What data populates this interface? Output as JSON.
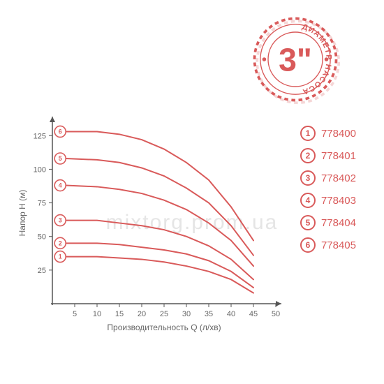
{
  "badge": {
    "diameter_value": "3\"",
    "ring_text": "ДИАМЕТР НАСОСА",
    "color": "#d95a5a",
    "outer_dash_color": "#d95a5a",
    "shadow_color": "rgba(217,90,90,0.25)"
  },
  "legend": {
    "color": "#d95a5a",
    "items": [
      {
        "n": "1",
        "label": "778400"
      },
      {
        "n": "2",
        "label": "778401"
      },
      {
        "n": "3",
        "label": "778402"
      },
      {
        "n": "4",
        "label": "778403"
      },
      {
        "n": "5",
        "label": "778404"
      },
      {
        "n": "6",
        "label": "778405"
      }
    ]
  },
  "watermark": "mixtorg.prom.ua",
  "chart": {
    "type": "line",
    "xlabel": "Производительность Q (л/хв)",
    "ylabel": "Напор H (м)",
    "label_fontsize": 12,
    "axis_color": "#555555",
    "tick_fontsize": 11,
    "tick_color": "#666666",
    "line_color": "#d95a5a",
    "line_width": 2,
    "marker_size": 8,
    "marker_fontsize": 7,
    "xlim": [
      0,
      50
    ],
    "ylim": [
      0,
      135
    ],
    "x_ticks": [
      5,
      10,
      15,
      20,
      25,
      30,
      35,
      40,
      45,
      50
    ],
    "y_ticks": [
      25,
      50,
      75,
      100,
      125
    ],
    "arrow_color": "#555555",
    "series": [
      {
        "n": "1",
        "points": [
          [
            3,
            35
          ],
          [
            10,
            35
          ],
          [
            15,
            34
          ],
          [
            20,
            33
          ],
          [
            25,
            31
          ],
          [
            30,
            28
          ],
          [
            35,
            24
          ],
          [
            40,
            18
          ],
          [
            45,
            8
          ]
        ]
      },
      {
        "n": "2",
        "points": [
          [
            3,
            45
          ],
          [
            10,
            45
          ],
          [
            15,
            44
          ],
          [
            20,
            42
          ],
          [
            25,
            40
          ],
          [
            30,
            37
          ],
          [
            35,
            32
          ],
          [
            40,
            24
          ],
          [
            45,
            12
          ]
        ]
      },
      {
        "n": "3",
        "points": [
          [
            3,
            62
          ],
          [
            10,
            62
          ],
          [
            15,
            60
          ],
          [
            20,
            58
          ],
          [
            25,
            55
          ],
          [
            30,
            50
          ],
          [
            35,
            43
          ],
          [
            40,
            33
          ],
          [
            45,
            18
          ]
        ]
      },
      {
        "n": "4",
        "points": [
          [
            3,
            88
          ],
          [
            10,
            87
          ],
          [
            15,
            85
          ],
          [
            20,
            82
          ],
          [
            25,
            77
          ],
          [
            30,
            70
          ],
          [
            35,
            60
          ],
          [
            40,
            47
          ],
          [
            45,
            28
          ]
        ]
      },
      {
        "n": "5",
        "points": [
          [
            3,
            108
          ],
          [
            10,
            107
          ],
          [
            15,
            105
          ],
          [
            20,
            101
          ],
          [
            25,
            95
          ],
          [
            30,
            86
          ],
          [
            35,
            75
          ],
          [
            40,
            58
          ],
          [
            45,
            36
          ]
        ]
      },
      {
        "n": "6",
        "points": [
          [
            3,
            128
          ],
          [
            10,
            128
          ],
          [
            15,
            126
          ],
          [
            20,
            122
          ],
          [
            25,
            115
          ],
          [
            30,
            105
          ],
          [
            35,
            92
          ],
          [
            40,
            72
          ],
          [
            45,
            47
          ]
        ]
      }
    ]
  }
}
